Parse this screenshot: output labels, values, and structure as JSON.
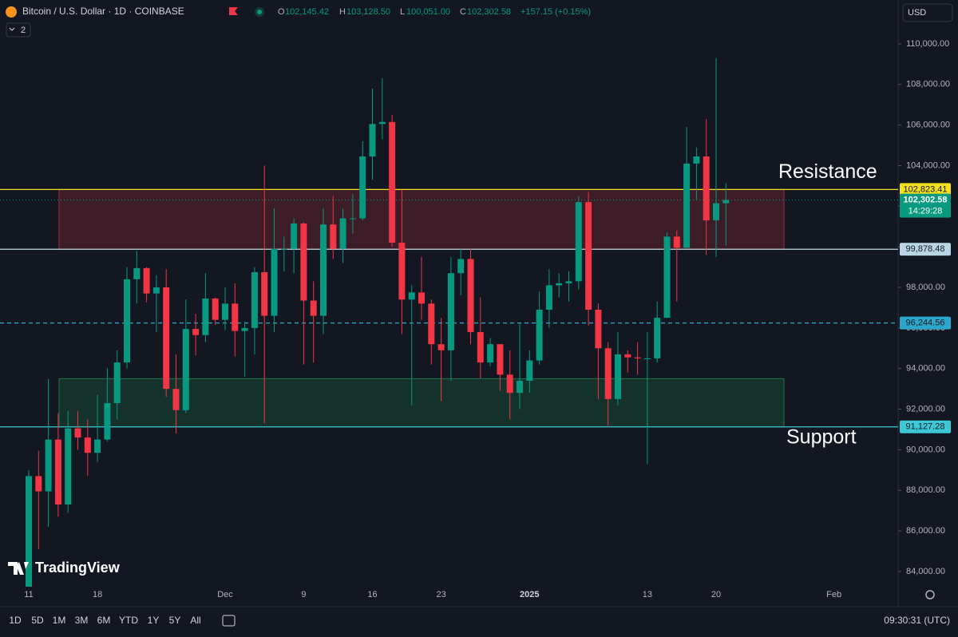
{
  "header": {
    "symbol": "Bitcoin / U.S. Dollar · 1D · COINBASE",
    "open_label": "O",
    "open": "102,145.42",
    "high_label": "H",
    "high": "103,128.50",
    "low_label": "L",
    "low": "100,051.00",
    "close_label": "C",
    "close": "102,302.58",
    "change": "+157.15 (+0.15%)",
    "indicators": "2",
    "currency": "USD"
  },
  "chart_data": {
    "type": "candlestick",
    "watermark": "TradingView",
    "categories": [
      "11",
      null,
      null,
      null,
      null,
      null,
      null,
      "18",
      null,
      null,
      null,
      null,
      null,
      null,
      null,
      null,
      null,
      null,
      null,
      null,
      "Dec",
      null,
      null,
      null,
      null,
      null,
      null,
      null,
      "9",
      null,
      null,
      null,
      null,
      null,
      null,
      "16",
      null,
      null,
      null,
      null,
      null,
      null,
      "23",
      null,
      null,
      null,
      null,
      null,
      null,
      null,
      null,
      "2025",
      null,
      null,
      null,
      null,
      null,
      null,
      null,
      null,
      null,
      null,
      null,
      "13",
      null,
      null,
      null,
      null,
      null,
      null,
      "20",
      null,
      null,
      null,
      null,
      null,
      null,
      null,
      null,
      null,
      null,
      null,
      "Feb"
    ],
    "open": [
      80370,
      88700,
      87950,
      90500,
      87300,
      91050,
      90600,
      89850,
      90500,
      92300,
      94300,
      98400,
      98950,
      97700,
      98000,
      93000,
      91950,
      95950,
      95650,
      97450,
      96400,
      97200,
      95850,
      96000,
      98750,
      96600,
      99900,
      99900,
      101150,
      97350,
      96600,
      101100,
      99900,
      101400,
      101400,
      104450,
      106050,
      106150,
      100200,
      97400,
      97750,
      97200,
      95200,
      94900,
      98700,
      99400,
      95800,
      94300,
      95200,
      93700,
      92800,
      93400,
      94400,
      96900,
      98100,
      98200,
      98300,
      102200,
      96900,
      95000,
      92500,
      94700,
      94550,
      94500,
      94500,
      96500,
      100500,
      99950,
      104100,
      104450,
      101300,
      102145.42,
      null,
      null,
      null,
      null,
      null,
      null,
      null,
      null,
      null,
      null,
      null
    ],
    "high": [
      89000,
      89950,
      93480,
      91800,
      91900,
      91900,
      91500,
      92700,
      94000,
      94900,
      99000,
      99800,
      99000,
      98600,
      98900,
      94700,
      97400,
      96700,
      98700,
      97500,
      98000,
      98200,
      96300,
      99000,
      104000,
      101900,
      100500,
      101400,
      101200,
      98300,
      101900,
      102500,
      101900,
      102600,
      105200,
      107800,
      108300,
      106500,
      102800,
      98100,
      99500,
      97400,
      96500,
      99500,
      99900,
      99900,
      97500,
      95500,
      95200,
      94900,
      96200,
      94900,
      97800,
      98900,
      98700,
      98800,
      102500,
      102700,
      97200,
      95300,
      95800,
      94900,
      95300,
      95800,
      97300,
      100700,
      100800,
      105900,
      104900,
      106300,
      109300,
      103128.5,
      null,
      null,
      null,
      null,
      null,
      null,
      null,
      null,
      null,
      null,
      null
    ],
    "low": [
      80200,
      85100,
      86200,
      86700,
      86900,
      90000,
      88700,
      89400,
      90400,
      91500,
      94000,
      97200,
      97250,
      95800,
      92600,
      90800,
      91800,
      94650,
      95300,
      96150,
      95900,
      94600,
      93600,
      94700,
      91300,
      95800,
      98800,
      98700,
      94200,
      94300,
      95700,
      99400,
      99200,
      100650,
      101300,
      103300,
      105300,
      100000,
      95700,
      92200,
      96400,
      94200,
      92400,
      93400,
      97600,
      95200,
      93500,
      94100,
      92900,
      91500,
      92000,
      92800,
      94200,
      96000,
      97500,
      97300,
      97900,
      96100,
      92500,
      91200,
      92200,
      93800,
      93700,
      89300,
      94300,
      96500,
      97300,
      99950,
      102300,
      99600,
      99500,
      100051,
      null,
      null,
      null,
      null,
      null,
      null,
      null,
      null,
      null,
      null,
      null
    ],
    "close": [
      88700,
      87950,
      90500,
      87300,
      91050,
      90600,
      89850,
      90500,
      92300,
      94300,
      98400,
      98950,
      97700,
      98000,
      93000,
      91950,
      95950,
      95650,
      97450,
      96400,
      97200,
      95850,
      96000,
      98750,
      96600,
      99900,
      99900,
      101150,
      97350,
      96600,
      101100,
      99900,
      101400,
      101400,
      104450,
      106050,
      106150,
      100200,
      97400,
      97750,
      97200,
      95200,
      94900,
      98700,
      99400,
      95800,
      94300,
      95200,
      93700,
      92800,
      93400,
      94400,
      96900,
      98100,
      98200,
      98300,
      102200,
      96900,
      95000,
      92500,
      94700,
      94550,
      94500,
      94500,
      96500,
      100500,
      99950,
      104100,
      104450,
      101300,
      102145.42,
      102302.58,
      null,
      null,
      null,
      null,
      null,
      null,
      null,
      null,
      null,
      null,
      null
    ],
    "up_color": "#089981",
    "down_color": "#f23645",
    "ylim": [
      83250,
      111000
    ],
    "yticks": [
      {
        "value": 84000,
        "label": "84,000.00"
      },
      {
        "value": 86000,
        "label": "86,000.00"
      },
      {
        "value": 88000,
        "label": "88,000.00"
      },
      {
        "value": 90000,
        "label": "90,000.00"
      },
      {
        "value": 92000,
        "label": "92,000.00"
      },
      {
        "value": 94000,
        "label": "94,000.00"
      },
      {
        "value": 96000,
        "label": "96,000.00"
      },
      {
        "value": 98000,
        "label": "98,000.00"
      },
      {
        "value": 100000,
        "label": "100,000.00"
      },
      {
        "value": 102000,
        "label": "102,000.00"
      },
      {
        "value": 104000,
        "label": "104,000.00"
      },
      {
        "value": 106000,
        "label": "106,000.00"
      },
      {
        "value": 108000,
        "label": "108,000.00"
      },
      {
        "value": 110000,
        "label": "110,000.00"
      }
    ],
    "zones": [
      {
        "label": "Resistance",
        "range": [
          99878.48,
          102823.41
        ],
        "color": "#f23645"
      },
      {
        "label": "Support",
        "range": [
          91127.28,
          93500
        ],
        "color": "#22ab5c"
      }
    ],
    "levels": [
      {
        "value": 102823.41,
        "label": "102,823.41",
        "color": "#f5e11b",
        "dashed": false
      },
      {
        "value": 99878.48,
        "label": "99,878.48",
        "color": "#b9d6e6",
        "dashed": false
      },
      {
        "value": 96244.56,
        "label": "96,244.56",
        "color": "#2aa7c9",
        "dashed": true
      },
      {
        "value": 91127.28,
        "label": "91,127.28",
        "color": "#3cc8d6",
        "dashed": false
      }
    ],
    "current_price": {
      "value": 102302.58,
      "label": "102,302.58",
      "countdown": "14:29:28",
      "color": "#089981"
    }
  },
  "toolbar": {
    "ranges": [
      "1D",
      "5D",
      "1M",
      "3M",
      "6M",
      "YTD",
      "1Y",
      "5Y",
      "All"
    ],
    "clock": "09:30:31 (UTC)"
  }
}
